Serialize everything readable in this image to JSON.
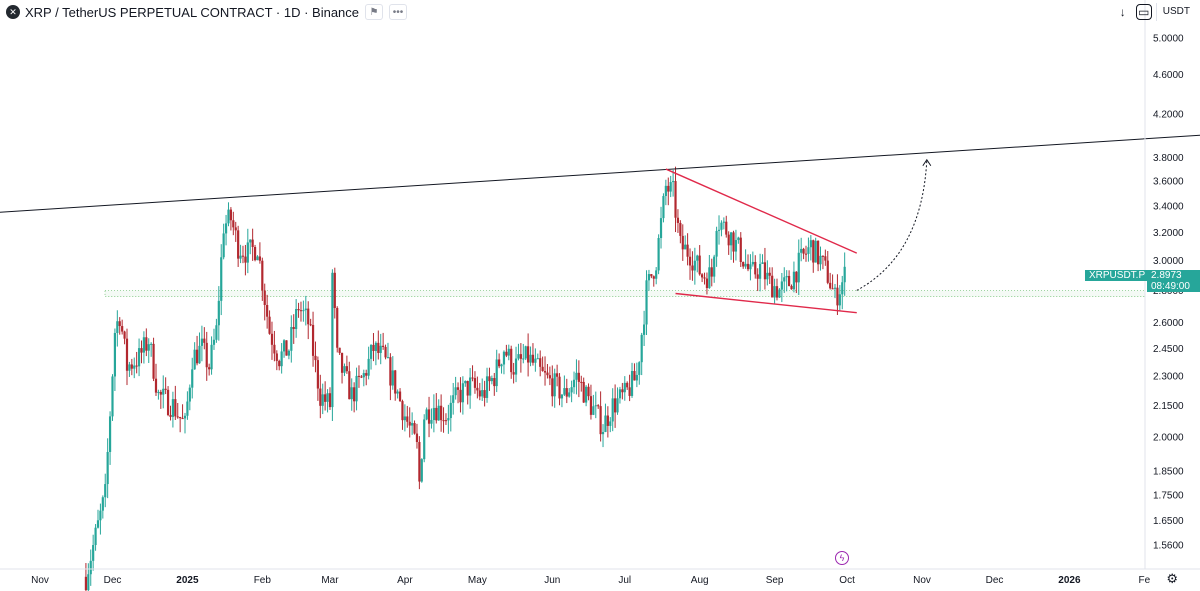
{
  "header": {
    "symbol_icon": "xrp-logo-icon",
    "title": "XRP / TetherUS PERPETUAL CONTRACT · 1D · Binance",
    "flag_icon": "flag-icon",
    "more_icon": "more-icon"
  },
  "toolbar": {
    "arrow_icon": "arrow-down-icon",
    "screen_icon": "fullscreen-icon",
    "currency": "USDT"
  },
  "price_marker": {
    "symbol": "XRPUSDT.P",
    "price": "2.8973",
    "countdown": "08:49:00"
  },
  "colors": {
    "up": "#26a69a",
    "down": "#b2282f",
    "trend": "#e0294a",
    "line": "#131722",
    "support": "#4caf50"
  },
  "chart_data": {
    "type": "candlestick",
    "scale": "log",
    "y_ticks": [
      "5.0000",
      "4.6000",
      "4.2000",
      "3.8000",
      "3.6000",
      "3.4000",
      "3.2000",
      "3.0000",
      "2.8000",
      "2.6000",
      "2.4500",
      "2.3000",
      "2.1500",
      "2.0000",
      "1.8500",
      "1.7500",
      "1.6500",
      "1.5600"
    ],
    "x_ticks": [
      "Nov",
      "Dec",
      "2025",
      "Feb",
      "Mar",
      "Apr",
      "May",
      "Jun",
      "Jul",
      "Aug",
      "Sep",
      "Oct",
      "Nov",
      "Dec",
      "2026",
      "Fe"
    ],
    "close_path": [
      [
        "2024-11-20",
        1.45
      ],
      [
        "2024-11-28",
        1.75
      ],
      [
        "2024-12-02",
        2.55
      ],
      [
        "2024-12-04",
        2.65
      ],
      [
        "2024-12-07",
        2.35
      ],
      [
        "2024-12-12",
        2.4
      ],
      [
        "2024-12-16",
        2.5
      ],
      [
        "2024-12-20",
        2.2
      ],
      [
        "2024-12-26",
        2.15
      ],
      [
        "2024-12-31",
        2.05
      ],
      [
        "2025-01-03",
        2.4
      ],
      [
        "2025-01-07",
        2.45
      ],
      [
        "2025-01-10",
        2.35
      ],
      [
        "2025-01-13",
        2.55
      ],
      [
        "2025-01-16",
        3.25
      ],
      [
        "2025-01-19",
        3.3
      ],
      [
        "2025-01-22",
        3.1
      ],
      [
        "2025-01-26",
        3.05
      ],
      [
        "2025-01-30",
        3.1
      ],
      [
        "2025-02-02",
        2.75
      ],
      [
        "2025-02-04",
        2.55
      ],
      [
        "2025-02-08",
        2.4
      ],
      [
        "2025-02-12",
        2.45
      ],
      [
        "2025-02-16",
        2.7
      ],
      [
        "2025-02-20",
        2.6
      ],
      [
        "2025-02-25",
        2.2
      ],
      [
        "2025-03-01",
        2.15
      ],
      [
        "2025-03-02",
        2.9
      ],
      [
        "2025-03-04",
        2.4
      ],
      [
        "2025-03-10",
        2.2
      ],
      [
        "2025-03-15",
        2.3
      ],
      [
        "2025-03-19",
        2.45
      ],
      [
        "2025-03-23",
        2.4
      ],
      [
        "2025-03-28",
        2.25
      ],
      [
        "2025-04-01",
        2.1
      ],
      [
        "2025-04-06",
        1.95
      ],
      [
        "2025-04-07",
        1.8
      ],
      [
        "2025-04-09",
        2.1
      ],
      [
        "2025-04-13",
        2.15
      ],
      [
        "2025-04-18",
        2.1
      ],
      [
        "2025-04-23",
        2.2
      ],
      [
        "2025-04-28",
        2.25
      ],
      [
        "2025-05-03",
        2.2
      ],
      [
        "2025-05-08",
        2.3
      ],
      [
        "2025-05-12",
        2.45
      ],
      [
        "2025-05-16",
        2.35
      ],
      [
        "2025-05-22",
        2.4
      ],
      [
        "2025-05-28",
        2.3
      ],
      [
        "2025-06-02",
        2.25
      ],
      [
        "2025-06-06",
        2.2
      ],
      [
        "2025-06-11",
        2.3
      ],
      [
        "2025-06-17",
        2.15
      ],
      [
        "2025-06-22",
        2.05
      ],
      [
        "2025-06-26",
        2.15
      ],
      [
        "2025-07-01",
        2.2
      ],
      [
        "2025-07-06",
        2.3
      ],
      [
        "2025-07-10",
        2.8
      ],
      [
        "2025-07-14",
        3.0
      ],
      [
        "2025-07-18",
        3.55
      ],
      [
        "2025-07-21",
        3.5
      ],
      [
        "2025-07-24",
        3.1
      ],
      [
        "2025-07-28",
        3.05
      ],
      [
        "2025-08-02",
        2.9
      ],
      [
        "2025-08-06",
        2.9
      ],
      [
        "2025-08-08",
        3.3
      ],
      [
        "2025-08-13",
        3.2
      ],
      [
        "2025-08-18",
        3.05
      ],
      [
        "2025-08-22",
        2.9
      ],
      [
        "2025-08-26",
        2.95
      ],
      [
        "2025-08-30",
        2.85
      ],
      [
        "2025-09-03",
        2.8
      ],
      [
        "2025-09-07",
        2.85
      ],
      [
        "2025-09-12",
        3.0
      ],
      [
        "2025-09-16",
        3.1
      ],
      [
        "2025-09-20",
        3.0
      ],
      [
        "2025-09-23",
        2.9
      ],
      [
        "2025-09-26",
        2.75
      ],
      [
        "2025-09-29",
        2.85
      ],
      [
        "2025-09-30",
        2.9
      ]
    ],
    "annotations": {
      "long_line": [
        [
          "2024-10-15",
          3.35
        ],
        [
          "2026-02-25",
          4.0
        ]
      ],
      "triangle_top": [
        [
          "2025-07-18",
          3.7
        ],
        [
          "2025-10-05",
          3.05
        ]
      ],
      "triangle_bottom": [
        [
          "2025-07-22",
          2.78
        ],
        [
          "2025-10-05",
          2.66
        ]
      ],
      "support_zone": [
        2.76,
        2.8
      ],
      "projection_arrow": [
        [
          "2025-10-05",
          2.8
        ],
        [
          "2025-11-03",
          3.78
        ]
      ]
    }
  }
}
